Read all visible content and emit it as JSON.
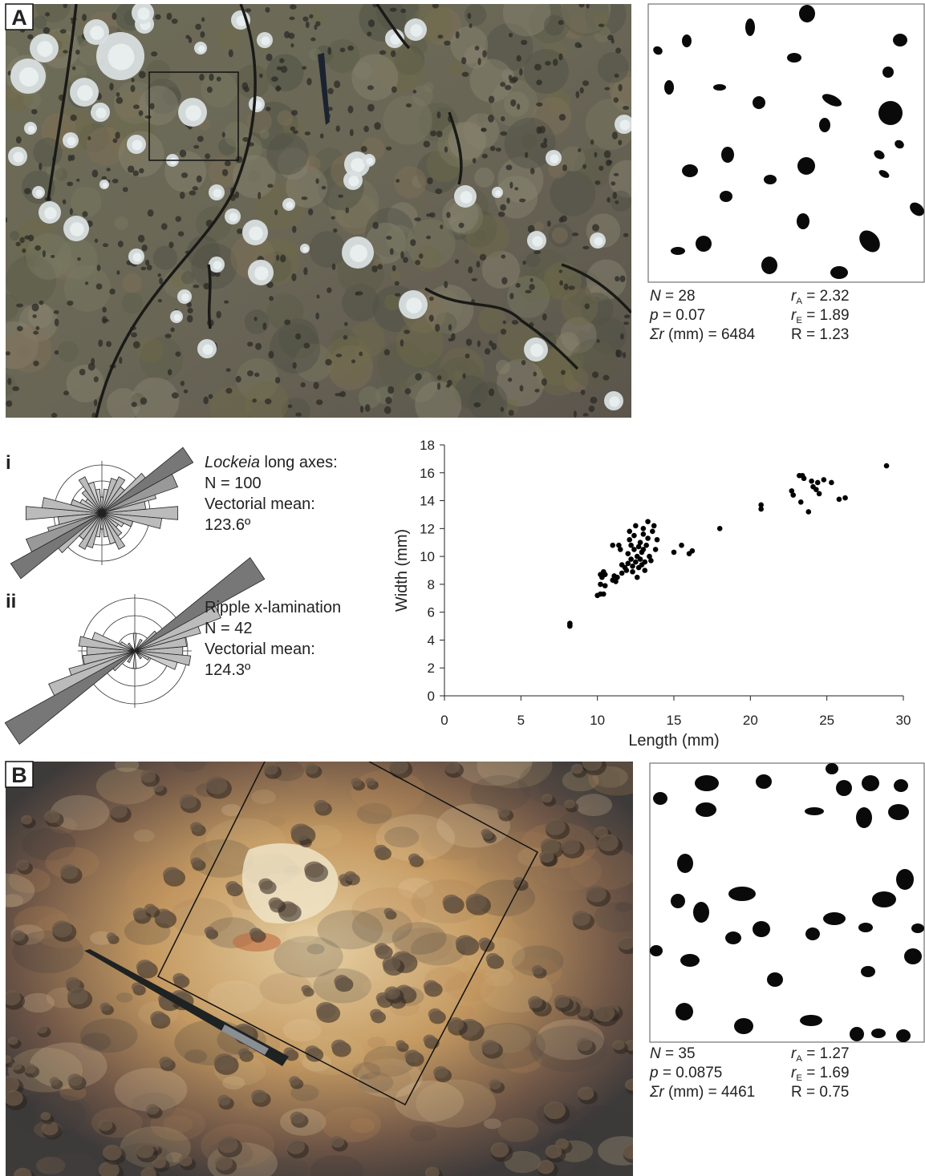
{
  "panel_a": {
    "label": "A",
    "stats_left": [
      {
        "symbol": "N",
        "text": " = 28"
      },
      {
        "symbol": "p",
        "text": " = 0.07"
      },
      {
        "symbol": "Σr",
        "text": " (mm) = 6484"
      }
    ],
    "stats_right": [
      {
        "symbol": "r",
        "subscript": "A",
        "text": " = 2.32"
      },
      {
        "symbol": "r",
        "subscript": "E",
        "text": " = 1.89"
      },
      {
        "text": "R = 1.23"
      }
    ]
  },
  "panel_b": {
    "label": "B",
    "stats_left": [
      {
        "symbol": "N",
        "text": " = 35"
      },
      {
        "symbol": "p",
        "text": " = 0.0875"
      },
      {
        "symbol": "Σr",
        "text": " (mm) = 4461"
      }
    ],
    "stats_right": [
      {
        "symbol": "r",
        "subscript": "A",
        "text": " = 1.27"
      },
      {
        "symbol": "r",
        "subscript": "E",
        "text": " = 1.69"
      },
      {
        "text": "R = 0.75"
      }
    ]
  },
  "rose_i": {
    "label": "i",
    "lines": [
      {
        "italic": "Lockeia",
        "text": " long axes:"
      },
      {
        "text": "N = 100"
      },
      {
        "text": "Vectorial mean:"
      },
      {
        "text": "123.6º"
      }
    ]
  },
  "rose_ii": {
    "label": "ii",
    "lines": [
      {
        "text": "Ripple x-lamination"
      },
      {
        "text": "N = 42"
      },
      {
        "text": "Vectorial mean:"
      },
      {
        "text": "124.3º"
      }
    ]
  },
  "chart_data": {
    "type": "scatter",
    "x_label": "Length (mm)",
    "y_label": "Width (mm)",
    "color": "#000000",
    "xlim": [
      0,
      30
    ],
    "xticks": [
      0,
      5,
      10,
      15,
      20,
      25,
      30
    ],
    "ylim": [
      0,
      18
    ],
    "yticks": [
      0,
      2,
      4,
      6,
      8,
      10,
      12,
      14,
      16,
      18
    ],
    "x": [
      8.2,
      8.2,
      8.2,
      10,
      10.2,
      10.4,
      10.2,
      10.3,
      10.2,
      10.4,
      10.5,
      10.5,
      11,
      11.1,
      11.2,
      11.3,
      11,
      11.4,
      11.5,
      11.6,
      11.6,
      11.8,
      11.9,
      12,
      12,
      12.1,
      12.1,
      12.2,
      12.2,
      12.3,
      12.3,
      12.4,
      12.4,
      12.5,
      12.5,
      12.6,
      12.6,
      12.7,
      12.7,
      12.8,
      12.8,
      12.9,
      12.9,
      13,
      13,
      13,
      13.1,
      13.1,
      13.2,
      13.3,
      13.3,
      13.4,
      13.5,
      13.6,
      13.7,
      13.8,
      13.9,
      15,
      15.5,
      16,
      16.2,
      18,
      20.7,
      20.7,
      22.7,
      22.8,
      23.2,
      23.4,
      23.5,
      23.3,
      23.8,
      24,
      24.1,
      24.3,
      24.4,
      24.5,
      24.8,
      25.3,
      25.8,
      26.2,
      28.9
    ],
    "y": [
      5.2,
      5,
      5.1,
      7.2,
      7.3,
      7.3,
      8,
      8.5,
      8.7,
      8.9,
      8.7,
      7.9,
      8.3,
      8.6,
      8.2,
      8.5,
      10.8,
      10.8,
      10.5,
      9.4,
      8.8,
      9.2,
      9,
      9.5,
      10.2,
      11.2,
      11.8,
      10.8,
      9.8,
      9.3,
      8.9,
      10.5,
      11.5,
      12.2,
      9.6,
      10,
      8.5,
      9.2,
      10.7,
      11,
      9.8,
      10.3,
      9.4,
      11.6,
      12,
      10.5,
      9.6,
      9,
      10.8,
      12.5,
      11.3,
      10,
      9.7,
      11.8,
      12.2,
      10.5,
      11.2,
      10.3,
      10.8,
      10.2,
      10.4,
      12,
      13.4,
      13.7,
      14.7,
      14.4,
      15.8,
      15.8,
      15.6,
      13.9,
      13.2,
      15.4,
      15,
      14.8,
      15.3,
      14.5,
      15.5,
      15.3,
      14.1,
      14.2,
      16.5
    ]
  }
}
